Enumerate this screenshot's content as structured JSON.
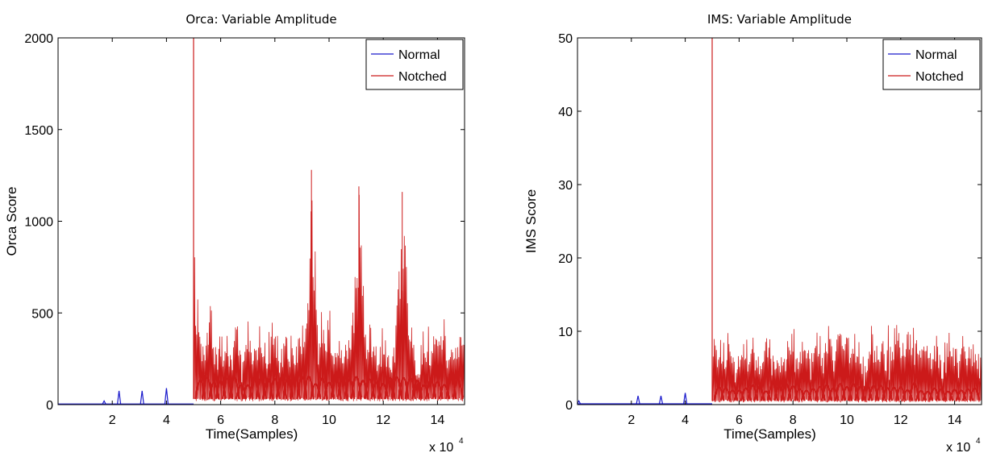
{
  "colors": {
    "normal": "#1a1acc",
    "notched": "#cc1a1a"
  },
  "chart_data": [
    {
      "type": "line",
      "title": "Orca: Variable Amplitude",
      "xlabel": "Time(Samples)",
      "ylabel": "Orca Score",
      "x_multiplier_label": "x 10",
      "x_multiplier_exp": "4",
      "xlim": [
        0,
        15
      ],
      "ylim": [
        0,
        2000
      ],
      "xticks": [
        2,
        4,
        6,
        8,
        10,
        12,
        14
      ],
      "xtick_labels": [
        "2",
        "4",
        "6",
        "8",
        "10",
        "12",
        "14"
      ],
      "yticks": [
        0,
        500,
        1000,
        1500,
        2000
      ],
      "ytick_labels": [
        "0",
        "500",
        "1000",
        "1500",
        "2000"
      ],
      "grid": false,
      "legend_position": "top-right",
      "series": [
        {
          "name": "Normal",
          "color": "#1a1acc",
          "baseline": 3,
          "x_range": [
            0,
            5
          ],
          "spikes": [
            [
              1.7,
              20
            ],
            [
              2.25,
              75
            ],
            [
              3.1,
              75
            ],
            [
              4.0,
              90
            ]
          ]
        },
        {
          "name": "Notched",
          "color": "#cc1a1a",
          "x_range": [
            5,
            15
          ],
          "main_spike": [
            5.0,
            2000
          ],
          "base_level": 30,
          "peaks": [
            [
              5.0,
              880
            ],
            [
              5.15,
              460
            ],
            [
              5.35,
              470
            ],
            [
              5.6,
              570
            ],
            [
              6.2,
              460
            ],
            [
              6.55,
              460
            ],
            [
              7.0,
              520
            ],
            [
              7.45,
              480
            ],
            [
              7.9,
              530
            ],
            [
              8.4,
              420
            ],
            [
              8.9,
              500
            ],
            [
              9.05,
              520
            ],
            [
              9.35,
              1280
            ],
            [
              9.7,
              540
            ],
            [
              10.0,
              570
            ],
            [
              10.3,
              470
            ],
            [
              10.6,
              500
            ],
            [
              10.95,
              740
            ],
            [
              11.1,
              1190
            ],
            [
              11.5,
              520
            ],
            [
              12.0,
              470
            ],
            [
              12.45,
              460
            ],
            [
              12.7,
              1160
            ],
            [
              13.0,
              460
            ],
            [
              13.5,
              490
            ],
            [
              13.9,
              480
            ],
            [
              14.2,
              540
            ],
            [
              14.5,
              420
            ],
            [
              14.8,
              500
            ]
          ]
        }
      ]
    },
    {
      "type": "line",
      "title": "IMS: Variable Amplitude",
      "xlabel": "Time(Samples)",
      "ylabel": "IMS Score",
      "x_multiplier_label": "x 10",
      "x_multiplier_exp": "4",
      "xlim": [
        0,
        15
      ],
      "ylim": [
        0,
        50
      ],
      "xticks": [
        2,
        4,
        6,
        8,
        10,
        12,
        14
      ],
      "xtick_labels": [
        "2",
        "4",
        "6",
        "8",
        "10",
        "12",
        "14"
      ],
      "yticks": [
        0,
        10,
        20,
        30,
        40,
        50
      ],
      "ytick_labels": [
        "0",
        "10",
        "20",
        "30",
        "40",
        "50"
      ],
      "grid": false,
      "legend_position": "top-right",
      "series": [
        {
          "name": "Normal",
          "color": "#1a1acc",
          "baseline": 0.1,
          "x_range": [
            0,
            5
          ],
          "spikes": [
            [
              0.05,
              0.5
            ],
            [
              2.25,
              1.2
            ],
            [
              3.1,
              1.2
            ],
            [
              4.0,
              1.6
            ]
          ]
        },
        {
          "name": "Notched",
          "color": "#cc1a1a",
          "x_range": [
            5,
            15
          ],
          "main_spike": [
            5.0,
            50
          ],
          "base_level": 0.5,
          "peaks": [
            [
              5.05,
              10.5
            ],
            [
              5.3,
              10
            ],
            [
              5.6,
              11
            ],
            [
              6.0,
              9
            ],
            [
              6.5,
              10.5
            ],
            [
              7.0,
              10.5
            ],
            [
              7.4,
              10
            ],
            [
              7.9,
              10.5
            ],
            [
              8.4,
              10.5
            ],
            [
              8.9,
              11
            ],
            [
              9.3,
              13
            ],
            [
              9.7,
              12
            ],
            [
              10.0,
              12.5
            ],
            [
              10.4,
              10.5
            ],
            [
              10.9,
              11
            ],
            [
              11.3,
              11
            ],
            [
              11.8,
              12.5
            ],
            [
              12.3,
              11
            ],
            [
              12.8,
              10.5
            ],
            [
              13.3,
              10.5
            ],
            [
              13.8,
              10.5
            ],
            [
              14.3,
              10.5
            ],
            [
              14.7,
              9.5
            ]
          ]
        }
      ]
    }
  ]
}
